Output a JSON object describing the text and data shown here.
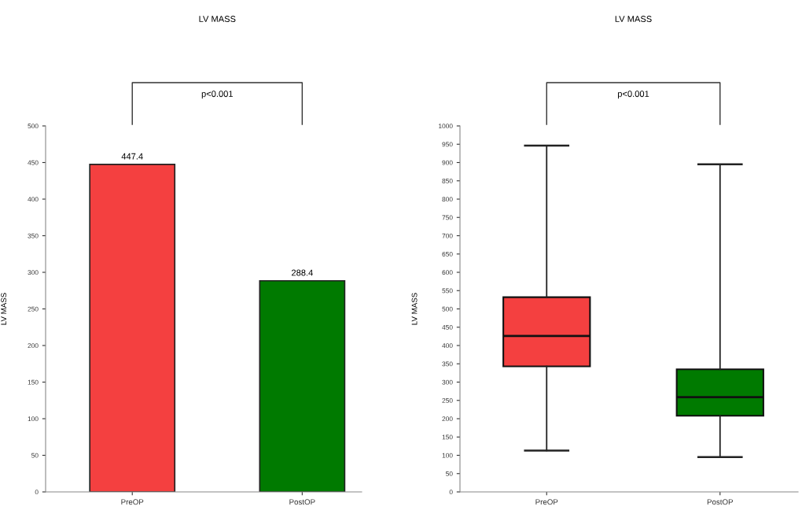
{
  "chart_data": [
    {
      "type": "bar",
      "title": "LV MASS",
      "ylabel": "LV MASS",
      "categories": [
        "PreOP",
        "PostOP"
      ],
      "values": [
        447.4,
        288.4
      ],
      "colors": [
        "#f44040",
        "#007a00"
      ],
      "data_labels": true,
      "ylim": [
        0,
        500
      ],
      "yticks": [
        0,
        50,
        100,
        150,
        200,
        250,
        300,
        350,
        400,
        450,
        500
      ],
      "grid": false,
      "annotations": [
        "p<0.001"
      ]
    },
    {
      "type": "box",
      "title": "LV MASS",
      "ylabel": "LV MASS",
      "categories": [
        "PreOP",
        "PostOP"
      ],
      "colors": [
        "#f44040",
        "#007a00"
      ],
      "boxes": [
        {
          "low": 113,
          "q1": 343,
          "median": 426,
          "q3": 532,
          "high": 946
        },
        {
          "low": 95,
          "q1": 208,
          "median": 259,
          "q3": 335,
          "high": 895
        }
      ],
      "ylim": [
        0,
        1000
      ],
      "yticks": [
        0,
        50,
        100,
        150,
        200,
        250,
        300,
        350,
        400,
        450,
        500,
        550,
        600,
        650,
        700,
        750,
        800,
        850,
        900,
        950,
        1000
      ],
      "grid": false,
      "annotations": [
        "p<0.001"
      ]
    }
  ]
}
